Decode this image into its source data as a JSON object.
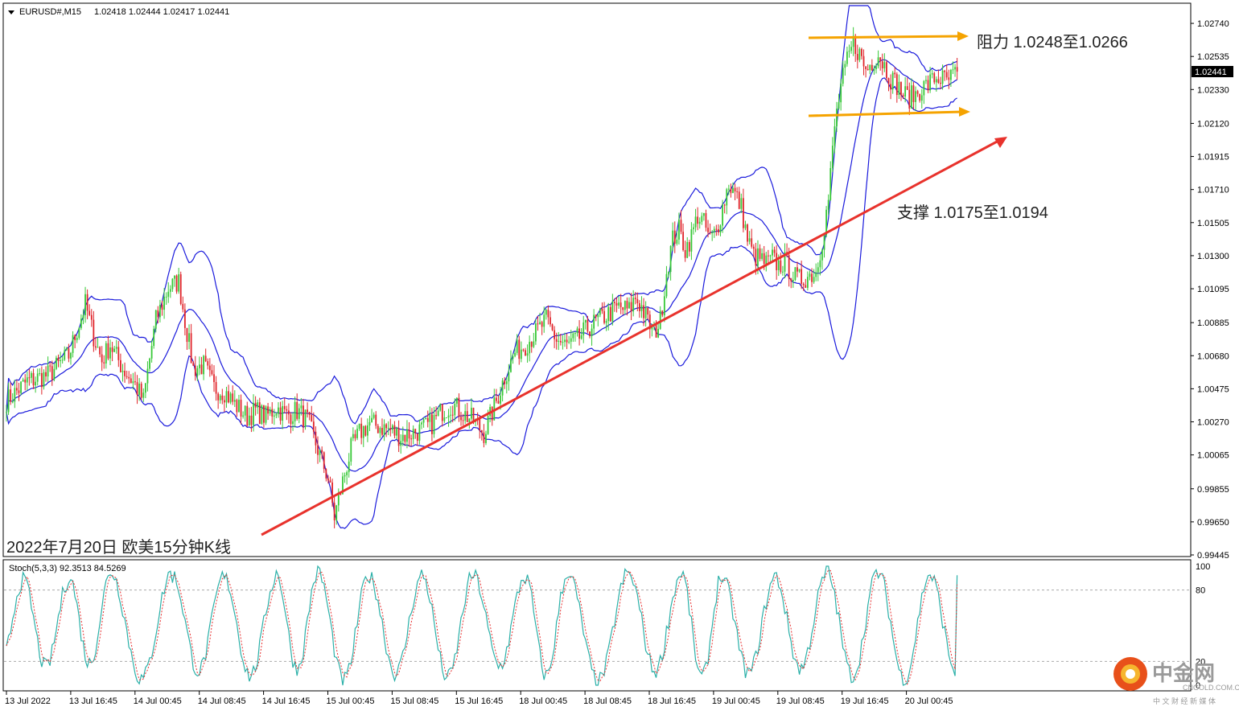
{
  "header": {
    "symbol": "EURUSD#,M15",
    "ohlc": "1.02418 1.02444 1.02417 1.02441"
  },
  "colors": {
    "bull": "#37c837",
    "bear": "#e0242a",
    "bands": "#1a1adc",
    "trendline": "#e8322c",
    "channel": "#f5a300",
    "stoch_main": "#2ab0a8",
    "stoch_signal": "#e83030"
  },
  "chart_data": [
    {
      "type": "candlestick",
      "subtype": "EURUSD M15 with Bollinger Bands",
      "symbol": "EURUSD#,M15",
      "open": 1.02418,
      "high": 1.02444,
      "low": 1.02417,
      "close": 1.02441,
      "current_price": "1.02441",
      "ylim": [
        0.99445,
        1.0285
      ],
      "y_ticks": [
        "1.02740",
        "1.02535",
        "1.02330",
        "1.02120",
        "1.01915",
        "1.01710",
        "1.01505",
        "1.01300",
        "1.01095",
        "1.00885",
        "1.00680",
        "1.00475",
        "1.00270",
        "1.00065",
        "0.99855",
        "0.99650",
        "0.99445"
      ],
      "x_ticks": [
        "13 Jul 2022",
        "13 Jul 16:45",
        "14 Jul 00:45",
        "14 Jul 08:45",
        "14 Jul 16:45",
        "15 Jul 00:45",
        "15 Jul 08:45",
        "15 Jul 16:45",
        "18 Jul 00:45",
        "18 Jul 08:45",
        "18 Jul 16:45",
        "19 Jul 00:45",
        "19 Jul 08:45",
        "19 Jul 16:45",
        "20 Jul 00:45"
      ],
      "close_path": [
        [
          0,
          1.004
        ],
        [
          10,
          1.0052
        ],
        [
          20,
          1.0056
        ],
        [
          30,
          1.0068
        ],
        [
          38,
          1.01
        ],
        [
          42,
          1.008
        ],
        [
          46,
          1.0065
        ],
        [
          50,
          1.0075
        ],
        [
          56,
          1.006
        ],
        [
          62,
          1.005
        ],
        [
          66,
          1.004
        ],
        [
          68,
          1.0058
        ],
        [
          72,
          1.009
        ],
        [
          78,
          1.011
        ],
        [
          83,
          1.0114
        ],
        [
          86,
          1.009
        ],
        [
          90,
          1.006
        ],
        [
          95,
          1.0062
        ],
        [
          100,
          1.0048
        ],
        [
          105,
          1.0046
        ],
        [
          110,
          1.0038
        ],
        [
          116,
          1.003
        ],
        [
          120,
          1.0034
        ],
        [
          125,
          1.003
        ],
        [
          130,
          1.0036
        ],
        [
          135,
          1.0031
        ],
        [
          140,
          1.0034
        ],
        [
          145,
          1.0028
        ],
        [
          150,
          1.001
        ],
        [
          155,
          0.9992
        ],
        [
          158,
          0.9968
        ],
        [
          162,
          0.999
        ],
        [
          166,
          1.001
        ],
        [
          170,
          1.002
        ],
        [
          175,
          1.0026
        ],
        [
          180,
          1.0024
        ],
        [
          185,
          1.0022
        ],
        [
          190,
          1.0018
        ],
        [
          195,
          1.002
        ],
        [
          200,
          1.0022
        ],
        [
          205,
          1.0026
        ],
        [
          210,
          1.0034
        ],
        [
          215,
          1.0038
        ],
        [
          220,
          1.0032
        ],
        [
          225,
          1.0028
        ],
        [
          230,
          1.002
        ],
        [
          235,
          1.0036
        ],
        [
          240,
          1.0055
        ],
        [
          245,
          1.007
        ],
        [
          250,
          1.0075
        ],
        [
          255,
          1.0082
        ],
        [
          260,
          1.009
        ],
        [
          265,
          1.0078
        ],
        [
          270,
          1.0074
        ],
        [
          275,
          1.0078
        ],
        [
          280,
          1.0085
        ],
        [
          285,
          1.009
        ],
        [
          290,
          1.0094
        ],
        [
          295,
          1.0098
        ],
        [
          300,
          1.0096
        ],
        [
          303,
          1.0104
        ],
        [
          306,
          1.0098
        ],
        [
          309,
          1.0089
        ],
        [
          312,
          1.0082
        ],
        [
          315,
          1.009
        ],
        [
          318,
          1.012
        ],
        [
          321,
          1.014
        ],
        [
          324,
          1.0146
        ],
        [
          327,
          1.0134
        ],
        [
          330,
          1.0142
        ],
        [
          333,
          1.0155
        ],
        [
          336,
          1.015
        ],
        [
          339,
          1.014
        ],
        [
          342,
          1.0145
        ],
        [
          345,
          1.016
        ],
        [
          348,
          1.0175
        ],
        [
          351,
          1.0168
        ],
        [
          354,
          1.016
        ],
        [
          357,
          1.014
        ],
        [
          360,
          1.013
        ],
        [
          363,
          1.0128
        ],
        [
          366,
          1.0125
        ],
        [
          369,
          1.0128
        ],
        [
          372,
          1.0124
        ],
        [
          375,
          1.0126
        ],
        [
          378,
          1.012
        ],
        [
          381,
          1.0115
        ],
        [
          384,
          1.0116
        ],
        [
          387,
          1.0118
        ],
        [
          390,
          1.012
        ],
        [
          393,
          1.014
        ],
        [
          396,
          1.0165
        ],
        [
          399,
          1.021
        ],
        [
          402,
          1.0235
        ],
        [
          405,
          1.025
        ],
        [
          408,
          1.0262
        ],
        [
          411,
          1.0255
        ],
        [
          414,
          1.0245
        ],
        [
          417,
          1.025
        ],
        [
          420,
          1.0255
        ],
        [
          423,
          1.0248
        ],
        [
          426,
          1.024
        ],
        [
          429,
          1.0236
        ],
        [
          432,
          1.023
        ],
        [
          435,
          1.0228
        ],
        [
          438,
          1.023
        ],
        [
          441,
          1.0234
        ],
        [
          444,
          1.0236
        ],
        [
          447,
          1.024
        ],
        [
          450,
          1.024
        ],
        [
          453,
          1.0238
        ],
        [
          456,
          1.0241
        ],
        [
          458,
          1.02441
        ]
      ],
      "annotations": [
        {
          "text": "阻力 1.0248至1.0266",
          "kind": "resistance channel",
          "from": 1.0248,
          "to": 1.0266
        },
        {
          "text": "支撑 1.0175至1.0194",
          "kind": "support trendline",
          "from": 1.0175,
          "to": 1.0194
        }
      ],
      "caption": "2022年7月20日 欧美15分钟K线"
    },
    {
      "type": "line",
      "name": "Stoch(5,3,3) 92.3513 84.5269",
      "main_last": 92.3513,
      "signal_last": 84.5269,
      "ylim": [
        0,
        100
      ],
      "y_ticks": [
        "100",
        "80",
        "20",
        "0"
      ],
      "levels": [
        80,
        20
      ],
      "cycle_peaks": [
        8,
        30,
        50,
        80,
        105,
        130,
        150,
        175,
        200,
        225,
        250,
        270,
        300,
        325,
        345,
        370,
        395,
        420,
        445
      ],
      "peak_values": [
        88,
        92,
        96,
        92,
        90,
        94,
        95,
        90,
        93,
        92,
        90,
        96,
        92,
        95,
        88,
        92,
        96,
        94,
        92
      ],
      "trough_values": [
        15,
        18,
        5,
        12,
        8,
        14,
        4,
        10,
        6,
        16,
        8,
        3,
        12,
        6,
        10,
        14,
        8,
        5,
        12
      ]
    }
  ],
  "logo": {
    "name": "中金网",
    "domain": "CNGOLD.COM.CN",
    "tagline": "中 文 财 经 新 媒 体"
  }
}
